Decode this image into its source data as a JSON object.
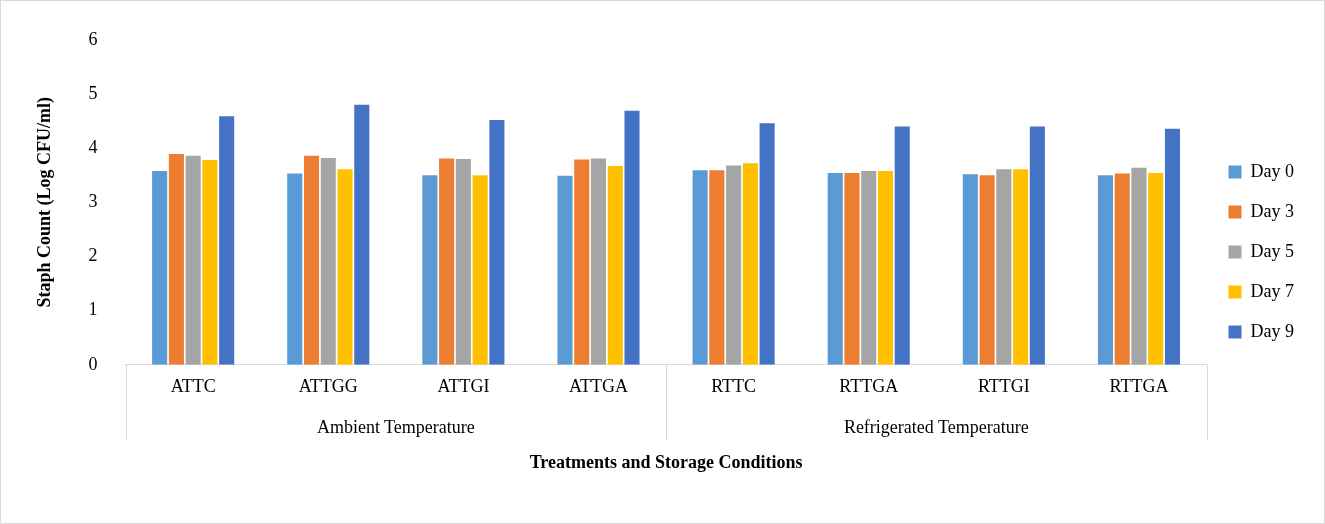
{
  "chart_data": {
    "type": "bar",
    "xlabel": "Treatments and Storage Conditions",
    "ylabel": "Staph Count (Log CFU/ml)",
    "categories": [
      "ATTC",
      "ATTGG",
      "ATTGI",
      "ATTGA",
      "RTTC",
      "RTTGA",
      "RTTGI",
      "RTTGA"
    ],
    "series": [
      {
        "name": "Day 0",
        "color": "#5b9bd5",
        "values": [
          3.58,
          3.53,
          3.5,
          3.49,
          3.59,
          3.54,
          3.52,
          3.5
        ]
      },
      {
        "name": "Day 3",
        "color": "#ed7d31",
        "values": [
          3.89,
          3.86,
          3.81,
          3.79,
          3.59,
          3.54,
          3.5,
          3.53
        ]
      },
      {
        "name": "Day 5",
        "color": "#a5a5a5",
        "values": [
          3.86,
          3.82,
          3.8,
          3.81,
          3.68,
          3.58,
          3.61,
          3.64
        ]
      },
      {
        "name": "Day 7",
        "color": "#ffc000",
        "values": [
          3.78,
          3.61,
          3.5,
          3.67,
          3.72,
          3.58,
          3.61,
          3.54
        ]
      },
      {
        "name": "Day 9",
        "color": "#4472c4",
        "values": [
          4.59,
          4.8,
          4.52,
          4.69,
          4.46,
          4.4,
          4.4,
          4.36
        ]
      }
    ],
    "ylim": [
      0,
      6
    ],
    "yticks": [
      0,
      1,
      2,
      3,
      4,
      5,
      6
    ],
    "grid": false,
    "legend": "right",
    "annotations": [
      "Ambient Temperature",
      "Refrigerated Temperature"
    ]
  }
}
